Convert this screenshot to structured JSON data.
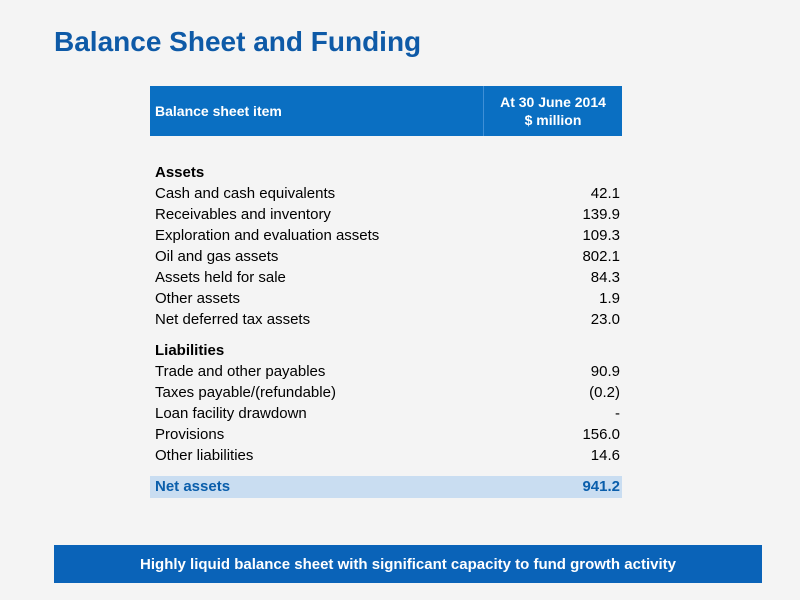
{
  "title": "Balance Sheet and Funding",
  "table": {
    "header": {
      "item_label": "Balance sheet item",
      "value_line1": "At 30 June 2014",
      "value_line2": "$ million"
    },
    "sections": [
      {
        "heading": "Assets",
        "rows": [
          {
            "label": "Cash and cash equivalents",
            "value": "42.1"
          },
          {
            "label": "Receivables and inventory",
            "value": "139.9"
          },
          {
            "label": "Exploration and evaluation assets",
            "value": "109.3"
          },
          {
            "label": "Oil and gas assets",
            "value": "802.1"
          },
          {
            "label": "Assets held for sale",
            "value": "84.3"
          },
          {
            "label": "Other assets",
            "value": "1.9"
          },
          {
            "label": "Net deferred tax assets",
            "value": "23.0"
          }
        ]
      },
      {
        "heading": "Liabilities",
        "rows": [
          {
            "label": "Trade and other payables",
            "value": "90.9"
          },
          {
            "label": "Taxes payable/(refundable)",
            "value": "(0.2)"
          },
          {
            "label": "Loan facility drawdown",
            "value": "-"
          },
          {
            "label": "Provisions",
            "value": "156.0"
          },
          {
            "label": "Other liabilities",
            "value": "14.6"
          }
        ]
      }
    ],
    "total": {
      "label": "Net assets",
      "value": "941.2"
    }
  },
  "banner": "Highly liquid balance sheet with significant capacity to fund growth activity",
  "colors": {
    "title": "#0e5aa7",
    "header_bg": "#0a6fc2",
    "total_bg": "#c9ddf1",
    "total_text": "#0a5eab",
    "banner_bg": "#0a63b8",
    "page_bg": "#f4f4f4"
  }
}
